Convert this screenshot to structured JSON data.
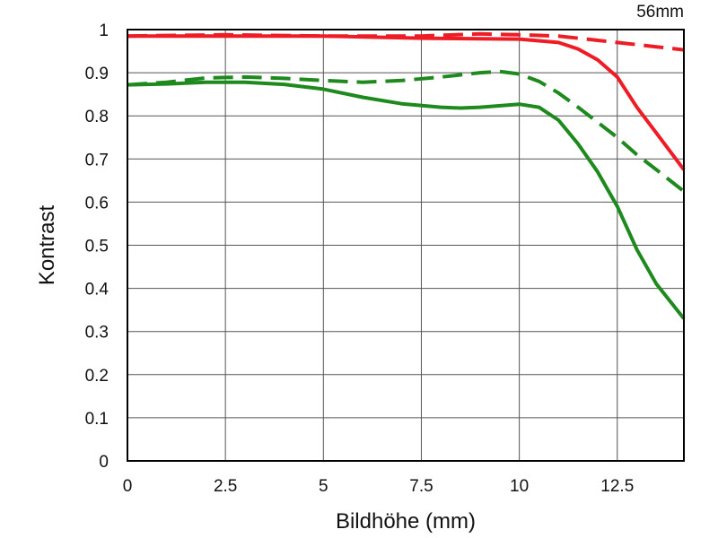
{
  "chart_data": {
    "type": "line",
    "title": "56mm",
    "xlabel": "Bildhöhe (mm)",
    "ylabel": "Kontrast",
    "xlim": [
      0,
      14.2
    ],
    "ylim": [
      0,
      1
    ],
    "xticks": [
      0,
      2.5,
      5,
      7.5,
      10,
      12.5
    ],
    "xtick_labels": [
      "0",
      "2.5",
      "5",
      "7.5",
      "10",
      "12.5"
    ],
    "yticks": [
      0,
      0.1,
      0.2,
      0.3,
      0.4,
      0.5,
      0.6,
      0.7,
      0.8,
      0.9,
      1
    ],
    "ytick_labels": [
      "0",
      "0.1",
      "0.2",
      "0.3",
      "0.4",
      "0.5",
      "0.6",
      "0.7",
      "0.8",
      "0.9",
      "1"
    ],
    "grid": true,
    "legend": false,
    "series": [
      {
        "color": "#ee1c24",
        "dash": "solid",
        "x": [
          0,
          2.5,
          5,
          7.5,
          10,
          11,
          11.5,
          12,
          12.5,
          13,
          13.5,
          14.2
        ],
        "y": [
          0.985,
          0.985,
          0.985,
          0.98,
          0.978,
          0.97,
          0.955,
          0.93,
          0.89,
          0.82,
          0.76,
          0.675
        ]
      },
      {
        "color": "#ee1c24",
        "dash": "dashed",
        "x": [
          0,
          2.5,
          5,
          7.5,
          9,
          10,
          11,
          11.5,
          12,
          12.5,
          13,
          13.5,
          14.2
        ],
        "y": [
          0.985,
          0.988,
          0.985,
          0.985,
          0.99,
          0.988,
          0.985,
          0.98,
          0.975,
          0.97,
          0.965,
          0.96,
          0.953
        ]
      },
      {
        "color": "#1e8a1e",
        "dash": "solid",
        "x": [
          0,
          1,
          2,
          3,
          4,
          5,
          6,
          7,
          8,
          8.5,
          9,
          10,
          10.5,
          11,
          11.5,
          12,
          12.5,
          13,
          13.5,
          14.2
        ],
        "y": [
          0.872,
          0.874,
          0.878,
          0.878,
          0.873,
          0.862,
          0.843,
          0.828,
          0.82,
          0.818,
          0.82,
          0.827,
          0.82,
          0.79,
          0.735,
          0.67,
          0.59,
          0.49,
          0.41,
          0.33
        ]
      },
      {
        "color": "#1e8a1e",
        "dash": "dashed",
        "x": [
          0,
          1,
          2,
          3,
          4,
          5,
          6,
          7,
          8,
          9,
          9.5,
          10,
          10.5,
          11,
          11.5,
          12,
          12.5,
          13,
          13.5,
          14.2
        ],
        "y": [
          0.872,
          0.878,
          0.888,
          0.89,
          0.887,
          0.882,
          0.878,
          0.882,
          0.89,
          0.9,
          0.903,
          0.897,
          0.88,
          0.853,
          0.82,
          0.785,
          0.75,
          0.71,
          0.675,
          0.625
        ]
      }
    ]
  }
}
